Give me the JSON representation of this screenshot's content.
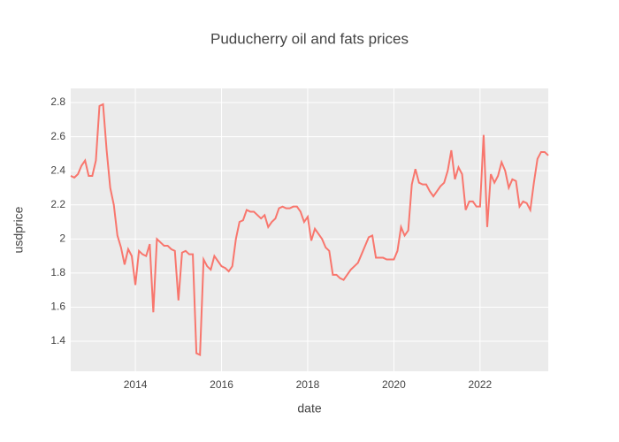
{
  "chart_data": {
    "type": "line",
    "title": "Puducherry oil and fats prices",
    "x_label": "date",
    "y_label": "usdprice",
    "x": [
      "2012-07",
      "2012-08",
      "2012-09",
      "2012-10",
      "2012-11",
      "2012-12",
      "2013-01",
      "2013-02",
      "2013-03",
      "2013-04",
      "2013-05",
      "2013-06",
      "2013-07",
      "2013-08",
      "2013-09",
      "2013-10",
      "2013-11",
      "2013-12",
      "2014-01",
      "2014-02",
      "2014-03",
      "2014-04",
      "2014-05",
      "2014-06",
      "2014-07",
      "2014-08",
      "2014-09",
      "2014-10",
      "2014-11",
      "2014-12",
      "2015-01",
      "2015-02",
      "2015-03",
      "2015-04",
      "2015-05",
      "2015-06",
      "2015-07",
      "2015-08",
      "2015-09",
      "2015-10",
      "2015-11",
      "2015-12",
      "2016-01",
      "2016-02",
      "2016-03",
      "2016-04",
      "2016-05",
      "2016-06",
      "2016-07",
      "2016-08",
      "2016-09",
      "2016-10",
      "2016-11",
      "2016-12",
      "2017-01",
      "2017-02",
      "2017-03",
      "2017-04",
      "2017-05",
      "2017-06",
      "2017-07",
      "2017-08",
      "2017-09",
      "2017-10",
      "2017-11",
      "2017-12",
      "2018-01",
      "2018-02",
      "2018-03",
      "2018-04",
      "2018-05",
      "2018-06",
      "2018-07",
      "2018-08",
      "2018-09",
      "2018-10",
      "2018-11",
      "2018-12",
      "2019-01",
      "2019-02",
      "2019-03",
      "2019-04",
      "2019-05",
      "2019-06",
      "2019-07",
      "2019-08",
      "2019-09",
      "2019-10",
      "2019-11",
      "2019-12",
      "2020-01",
      "2020-02",
      "2020-03",
      "2020-04",
      "2020-05",
      "2020-06",
      "2020-07",
      "2020-08",
      "2020-09",
      "2020-10",
      "2020-11",
      "2020-12",
      "2021-01",
      "2021-02",
      "2021-03",
      "2021-04",
      "2021-05",
      "2021-06",
      "2021-07",
      "2021-08",
      "2021-09",
      "2021-10",
      "2021-11",
      "2021-12",
      "2022-01",
      "2022-02",
      "2022-03",
      "2022-04",
      "2022-05",
      "2022-06",
      "2022-07",
      "2022-08",
      "2022-09",
      "2022-10",
      "2022-11",
      "2022-12",
      "2023-01",
      "2023-02",
      "2023-03",
      "2023-04",
      "2023-05",
      "2023-06",
      "2023-07",
      "2023-08"
    ],
    "series": [
      {
        "name": "usdprice",
        "color": "#F8766D",
        "values": [
          2.37,
          2.36,
          2.38,
          2.43,
          2.46,
          2.37,
          2.37,
          2.46,
          2.78,
          2.79,
          2.52,
          2.3,
          2.2,
          2.02,
          1.95,
          1.85,
          1.94,
          1.9,
          1.73,
          1.93,
          1.91,
          1.9,
          1.97,
          1.57,
          2.0,
          1.98,
          1.96,
          1.96,
          1.94,
          1.93,
          1.64,
          1.92,
          1.93,
          1.91,
          1.91,
          1.33,
          1.32,
          1.88,
          1.84,
          1.82,
          1.9,
          1.87,
          1.84,
          1.83,
          1.81,
          1.84,
          2.0,
          2.1,
          2.11,
          2.17,
          2.16,
          2.16,
          2.14,
          2.12,
          2.14,
          2.07,
          2.1,
          2.12,
          2.18,
          2.19,
          2.18,
          2.18,
          2.19,
          2.19,
          2.16,
          2.1,
          2.13,
          1.99,
          2.06,
          2.03,
          2.0,
          1.95,
          1.93,
          1.79,
          1.79,
          1.77,
          1.76,
          1.79,
          1.82,
          1.84,
          1.86,
          1.91,
          1.96,
          2.01,
          2.02,
          1.89,
          1.89,
          1.89,
          1.88,
          1.88,
          1.88,
          1.93,
          2.07,
          2.02,
          2.05,
          2.32,
          2.41,
          2.33,
          2.32,
          2.32,
          2.28,
          2.25,
          2.28,
          2.31,
          2.33,
          2.4,
          2.52,
          2.35,
          2.42,
          2.38,
          2.17,
          2.22,
          2.22,
          2.19,
          2.19,
          2.61,
          2.07,
          2.38,
          2.33,
          2.37,
          2.45,
          2.4,
          2.3,
          2.35,
          2.34,
          2.19,
          2.22,
          2.21,
          2.17,
          2.33,
          2.47,
          2.51,
          2.51,
          2.49
        ]
      }
    ],
    "xlim": [
      "2012-07",
      "2023-08"
    ],
    "xticks": [
      {
        "value": "2014-01",
        "label": "2014"
      },
      {
        "value": "2016-01",
        "label": "2016"
      },
      {
        "value": "2018-01",
        "label": "2018"
      },
      {
        "value": "2020-01",
        "label": "2020"
      },
      {
        "value": "2022-01",
        "label": "2022"
      }
    ],
    "ylim": [
      1.224,
      2.883
    ],
    "yticks": [
      1.4,
      1.6,
      1.8,
      2,
      2.2,
      2.4,
      2.6,
      2.8
    ],
    "grid": true,
    "background": "#ebebeb"
  }
}
